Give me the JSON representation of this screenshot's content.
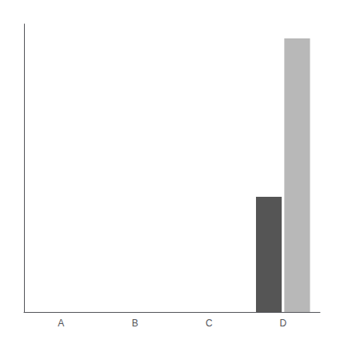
{
  "chart_data": {
    "type": "bar",
    "categories": [
      "A",
      "B",
      "C",
      "D"
    ],
    "series": [
      {
        "color": "#555555",
        "values": [
          0,
          0,
          0,
          40
        ]
      },
      {
        "color": "#b8b8b8",
        "values": [
          0,
          0,
          0,
          95
        ]
      }
    ],
    "ylim": [
      0,
      100
    ],
    "grid": false,
    "tick_labels": "x"
  }
}
